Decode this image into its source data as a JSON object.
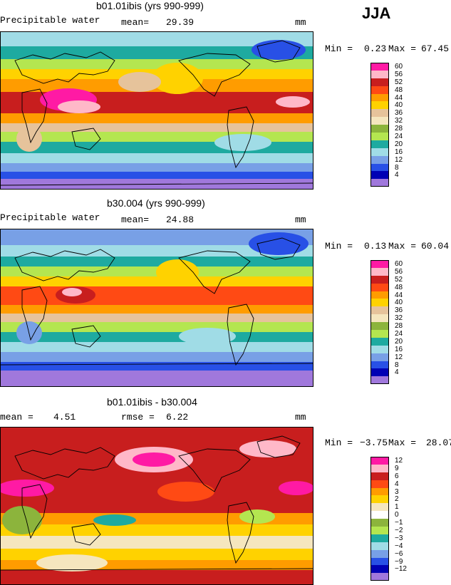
{
  "season": "JJA",
  "units": "mm",
  "panels": [
    {
      "title": "b01.01ibis (yrs 990-999)",
      "left_label": "Precipitable water",
      "stat_label": "mean=",
      "stat_value": "29.39",
      "units": "mm",
      "min_label": "Min =",
      "min_value": "0.23",
      "max_label": "Max =",
      "max_value": "67.45"
    },
    {
      "title": "b30.004 (yrs 990-999)",
      "left_label": "Precipitable water",
      "stat_label": "mean=",
      "stat_value": "24.88",
      "units": "mm",
      "min_label": "Min =",
      "min_value": "0.13",
      "max_label": "Max =",
      "max_value": "60.04"
    },
    {
      "title": "b01.01ibis - b30.004",
      "left_label": "mean =",
      "left_value": "4.51",
      "stat_label": "rmse =",
      "stat_value": "6.22",
      "units": "mm",
      "min_label": "Min =",
      "min_value": "−3.75",
      "max_label": "Max =",
      "max_value": "28.07"
    }
  ],
  "legend_abs": {
    "labels": [
      "60",
      "56",
      "52",
      "48",
      "44",
      "40",
      "36",
      "32",
      "28",
      "24",
      "20",
      "16",
      "12",
      "8",
      "4"
    ],
    "colors": [
      "#ff1aa4",
      "#ffb8c8",
      "#c81e1e",
      "#ff4a14",
      "#ff9c00",
      "#ffd200",
      "#e6c39b",
      "#f5e6be",
      "#8cb43c",
      "#b4e650",
      "#1eaaa0",
      "#a0dce6",
      "#78a0e6",
      "#2850e6",
      "#0000b4",
      "#a078dc"
    ]
  },
  "legend_diff": {
    "labels": [
      "12",
      "9",
      "6",
      "4",
      "3",
      "2",
      "1",
      "0",
      "−1",
      "−2",
      "−3",
      "−4",
      "−6",
      "−9",
      "−12"
    ],
    "colors": [
      "#ff1aa4",
      "#ffb8c8",
      "#c81e1e",
      "#ff4a14",
      "#ff9c00",
      "#ffd200",
      "#f5e6be",
      "#ffffff",
      "#8cb43c",
      "#b4e650",
      "#1eaaa0",
      "#a0dce6",
      "#78a0e6",
      "#2850e6",
      "#0000b4",
      "#a078dc"
    ]
  }
}
